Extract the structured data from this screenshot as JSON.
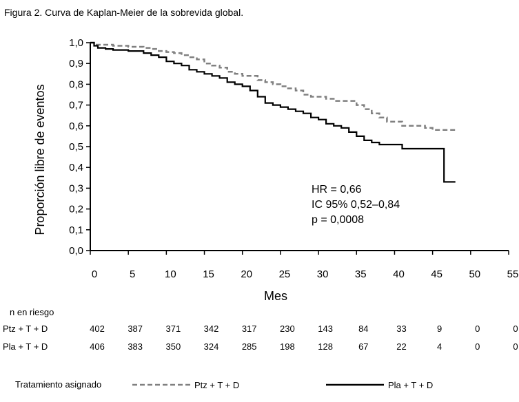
{
  "figure_title": "Figura 2. Curva de Kaplan-Meier de la sobrevida global.",
  "stats": {
    "hr": "HR = 0,66",
    "ic": "IC 95% 0,52–0,84",
    "p": "p = 0,0008"
  },
  "risk_table": {
    "header": "n en riesgo",
    "rows": [
      {
        "label": "Ptz + T + D",
        "values": [
          "402",
          "387",
          "371",
          "342",
          "317",
          "230",
          "143",
          "84",
          "33",
          "9",
          "0",
          "0"
        ]
      },
      {
        "label": "Pla + T + D",
        "values": [
          "406",
          "383",
          "350",
          "324",
          "285",
          "198",
          "128",
          "67",
          "22",
          "4",
          "0",
          "0"
        ]
      }
    ]
  },
  "legend": {
    "title": "Tratamiento asignado",
    "items": [
      {
        "label": "Ptz + T + D",
        "color": "#808080",
        "dashed": true
      },
      {
        "label": "Pla + T + D",
        "color": "#000000",
        "dashed": false
      }
    ]
  },
  "chart_data": {
    "type": "line",
    "title": "Figura 2. Curva de Kaplan-Meier de la sobrevida global.",
    "xlabel": "Mes",
    "ylabel": "Proporción libre de eventos",
    "xlim": [
      0,
      55
    ],
    "ylim": [
      0,
      1
    ],
    "xticks": [
      "0",
      "5",
      "10",
      "15",
      "20",
      "25",
      "30",
      "35",
      "40",
      "45",
      "50",
      "55"
    ],
    "yticks": [
      "0,0",
      "0,1",
      "0,2",
      "0,3",
      "0,4",
      "0,5",
      "0,6",
      "0,7",
      "0,8",
      "0,9",
      "1,0"
    ],
    "grid": false,
    "series": [
      {
        "name": "Ptz + T + D",
        "color": "#808080",
        "dashed": true,
        "x": [
          0,
          0.5,
          1,
          3,
          5,
          7,
          8,
          9,
          10,
          11,
          12,
          13,
          14,
          15,
          16,
          17,
          18,
          19,
          20,
          21,
          22,
          23,
          24,
          25,
          26,
          27,
          28,
          29,
          30,
          31,
          32,
          33,
          34,
          35,
          36,
          37,
          38,
          39,
          40,
          41,
          42,
          43,
          44,
          45,
          46,
          47,
          48
        ],
        "y": [
          1.0,
          0.99,
          0.99,
          0.985,
          0.98,
          0.975,
          0.97,
          0.96,
          0.955,
          0.95,
          0.94,
          0.93,
          0.92,
          0.9,
          0.89,
          0.88,
          0.86,
          0.85,
          0.84,
          0.84,
          0.82,
          0.81,
          0.8,
          0.79,
          0.78,
          0.77,
          0.75,
          0.74,
          0.74,
          0.73,
          0.72,
          0.72,
          0.72,
          0.7,
          0.68,
          0.66,
          0.64,
          0.62,
          0.62,
          0.6,
          0.6,
          0.6,
          0.59,
          0.58,
          0.58,
          0.58,
          0.58
        ]
      },
      {
        "name": "Pla + T + D",
        "color": "#000000",
        "dashed": false,
        "x": [
          0,
          0.5,
          1,
          2,
          3,
          5,
          7,
          8,
          9,
          10,
          11,
          12,
          13,
          14,
          15,
          16,
          17,
          18,
          19,
          20,
          21,
          22,
          23,
          24,
          25,
          26,
          27,
          28,
          29,
          30,
          31,
          32,
          33,
          34,
          35,
          36,
          37,
          38,
          39,
          40,
          41,
          42,
          43,
          44,
          45,
          46,
          46.5,
          46.5,
          47,
          48
        ],
        "y": [
          1.0,
          0.985,
          0.975,
          0.97,
          0.965,
          0.96,
          0.95,
          0.94,
          0.93,
          0.91,
          0.9,
          0.89,
          0.87,
          0.86,
          0.85,
          0.84,
          0.83,
          0.81,
          0.8,
          0.79,
          0.77,
          0.74,
          0.71,
          0.7,
          0.69,
          0.68,
          0.67,
          0.66,
          0.64,
          0.63,
          0.61,
          0.6,
          0.59,
          0.57,
          0.55,
          0.53,
          0.52,
          0.51,
          0.51,
          0.51,
          0.49,
          0.49,
          0.49,
          0.49,
          0.49,
          0.49,
          0.49,
          0.33,
          0.33,
          0.33
        ]
      }
    ]
  }
}
